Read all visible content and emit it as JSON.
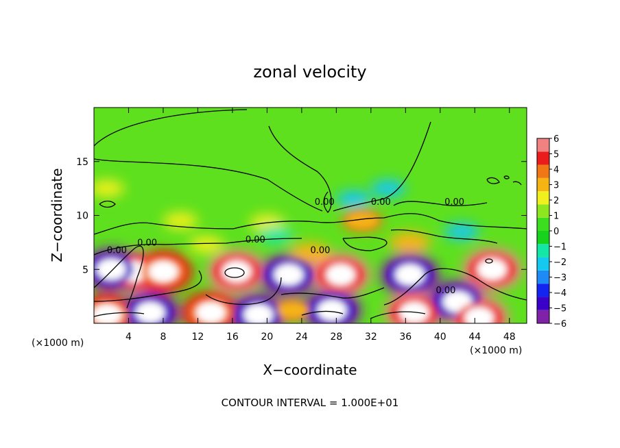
{
  "chart_data": {
    "type": "contour",
    "title": "zonal velocity",
    "xlabel": "X−coordinate",
    "ylabel": "Z−coordinate",
    "x_unit_left": "(×1000 m)",
    "x_unit_right": "(×1000 m)",
    "xlim": [
      0,
      50
    ],
    "ylim": [
      0,
      20
    ],
    "x_ticks": [
      4,
      8,
      12,
      16,
      20,
      24,
      28,
      32,
      36,
      40,
      44,
      48
    ],
    "x_tick_labels": [
      "4",
      "8",
      "12",
      "16",
      "20",
      "24",
      "28",
      "32",
      "36",
      "40",
      "44",
      "48"
    ],
    "y_ticks": [
      5,
      10,
      15
    ],
    "y_tick_labels": [
      "5",
      "10",
      "15"
    ],
    "footer": "CONTOUR INTERVAL = 1.000E+01",
    "contour_labels": [
      "0.00",
      "0.00",
      "0.00",
      "0.00",
      "0.00",
      "0.00",
      "0.00",
      "0.00"
    ],
    "colorbar": {
      "min": -6,
      "max": 6,
      "labels": [
        "6",
        "5",
        "4",
        "3",
        "2",
        "1",
        "0",
        "−1",
        "−2",
        "−3",
        "−4",
        "−5",
        "−6"
      ],
      "colors": [
        "#7f22a8",
        "#3a00c8",
        "#1424f0",
        "#1e8af5",
        "#14c8f0",
        "#14e6a6",
        "#16d21c",
        "#3cdc1e",
        "#8ee61e",
        "#f0f01e",
        "#f5b414",
        "#f07814",
        "#eb1c1c",
        "#f08282"
      ]
    },
    "features": [
      {
        "kind": "max",
        "x": 4.5,
        "z": 4.8,
        "value": 6
      },
      {
        "kind": "min",
        "x": 2.0,
        "z": 5.0,
        "value": -6
      },
      {
        "kind": "max",
        "x": 8.0,
        "z": 4.8,
        "value": 5
      },
      {
        "kind": "max",
        "x": 16.5,
        "z": 4.8,
        "value": 6
      },
      {
        "kind": "min",
        "x": 22.5,
        "z": 4.5,
        "value": -6
      },
      {
        "kind": "max",
        "x": 28.5,
        "z": 4.5,
        "value": 6
      },
      {
        "kind": "min",
        "x": 36.5,
        "z": 4.5,
        "value": -6
      },
      {
        "kind": "max",
        "x": 46.0,
        "z": 5.0,
        "value": 6
      },
      {
        "kind": "max",
        "x": 1.5,
        "z": 0.8,
        "value": 5
      },
      {
        "kind": "min",
        "x": 6.5,
        "z": 1.0,
        "value": -6
      },
      {
        "kind": "max",
        "x": 13.5,
        "z": 1.0,
        "value": 5
      },
      {
        "kind": "min",
        "x": 19.0,
        "z": 0.8,
        "value": -6
      },
      {
        "kind": "max",
        "x": 23.0,
        "z": 1.2,
        "value": 4
      },
      {
        "kind": "min",
        "x": 27.5,
        "z": 1.2,
        "value": -6
      },
      {
        "kind": "max",
        "x": 37.0,
        "z": 1.0,
        "value": 6
      },
      {
        "kind": "min",
        "x": 42.0,
        "z": 2.0,
        "value": -6
      },
      {
        "kind": "max",
        "x": 44.5,
        "z": 0.5,
        "value": 6
      },
      {
        "kind": "max",
        "x": 31.0,
        "z": 9.5,
        "value": 4
      },
      {
        "kind": "max",
        "x": 10.0,
        "z": 9.5,
        "value": 2
      },
      {
        "kind": "max",
        "x": 20.0,
        "z": 9.3,
        "value": 2
      },
      {
        "kind": "max",
        "x": 36.5,
        "z": 7.5,
        "value": 3
      },
      {
        "kind": "min",
        "x": 30.0,
        "z": 11.5,
        "value": -2
      },
      {
        "kind": "min",
        "x": 34.0,
        "z": 12.5,
        "value": -2
      },
      {
        "kind": "min",
        "x": 42.5,
        "z": 8.5,
        "value": -2
      },
      {
        "kind": "min",
        "x": 21.0,
        "z": 8.2,
        "value": -1
      },
      {
        "kind": "max",
        "x": 13.0,
        "z": 7.3,
        "value": 2
      },
      {
        "kind": "max",
        "x": 1.5,
        "z": 12.5,
        "value": 2
      },
      {
        "kind": "max",
        "x": 25.0,
        "z": 6.5,
        "value": 3
      }
    ]
  }
}
